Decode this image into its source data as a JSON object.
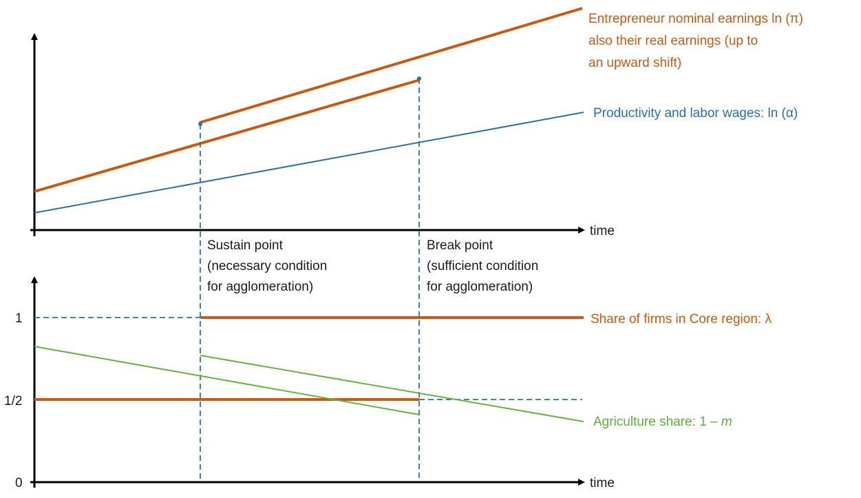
{
  "colors": {
    "orange": "#c55a11",
    "blue": "#2e6e9e",
    "green": "#66b045",
    "dash": "#2e6e9e",
    "axis": "#000000"
  },
  "top_panel": {
    "x_axis_label": "time",
    "earnings_label": {
      "line1": "Entrepreneur nominal earnings ln (π)",
      "line2": "also their real earnings (up to",
      "line3": "an upward shift)"
    },
    "productivity_label": "Productivity and labor wages: ln (α)"
  },
  "sustain_point": {
    "line1": "Sustain point",
    "line2": "(necessary condition",
    "line3": "for agglomeration)"
  },
  "break_point": {
    "line1": "Break point",
    "line2": "(sufficient condition",
    "line3": "for agglomeration)"
  },
  "bottom_panel": {
    "x_axis_label": "time",
    "y_ticks": {
      "one": "1",
      "half": "1/2",
      "zero": "0"
    },
    "share_firms_label": "Share of firms in Core region: λ",
    "agriculture_label_prefix": "Agriculture share: 1 – ",
    "agriculture_label_var": "m"
  }
}
